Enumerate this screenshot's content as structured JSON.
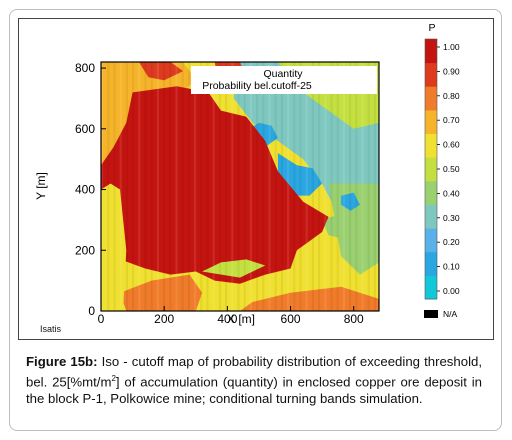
{
  "chart_data": {
    "type": "heatmap",
    "title": "Quantity",
    "subtitle": "Probability bel.cutoff-25",
    "xlabel": "X [m]",
    "ylabel": "Y [m]",
    "xlim": [
      0,
      880
    ],
    "ylim": [
      0,
      820
    ],
    "x_ticks": [
      "0",
      "200",
      "400",
      "600",
      "800"
    ],
    "y_ticks": [
      "0",
      "200",
      "400",
      "600",
      "800"
    ],
    "x_tick_values": [
      0,
      200,
      400,
      600,
      800
    ],
    "y_tick_values": [
      0,
      200,
      400,
      600,
      800
    ],
    "colorbar": {
      "title": "P",
      "range": [
        0,
        1
      ],
      "ticks": [
        "1.00",
        "0.90",
        "0.80",
        "0.70",
        "0.60",
        "0.50",
        "0.40",
        "0.30",
        "0.20",
        "0.10",
        "0.00"
      ],
      "tick_values": [
        1.0,
        0.9,
        0.8,
        0.7,
        0.6,
        0.5,
        0.4,
        0.3,
        0.2,
        0.1,
        0.0
      ],
      "colors": [
        "#10c8d8",
        "#2aa6e0",
        "#5ab0e8",
        "#7fc8c0",
        "#9ad070",
        "#c4e040",
        "#f0e030",
        "#f6b42a",
        "#f07b2a",
        "#dd3a1e",
        "#c41410"
      ],
      "na_label": "N/A",
      "na_color": "#000000"
    },
    "regions": [
      {
        "p": 0.55,
        "points": [
          [
            0,
            0
          ],
          [
            880,
            0
          ],
          [
            880,
            820
          ],
          [
            0,
            820
          ]
        ]
      },
      {
        "p": 0.72,
        "points": [
          [
            0,
            820
          ],
          [
            260,
            820
          ],
          [
            300,
            760
          ],
          [
            230,
            700
          ],
          [
            180,
            600
          ],
          [
            120,
            520
          ],
          [
            60,
            440
          ],
          [
            0,
            400
          ]
        ]
      },
      {
        "p": 0.82,
        "points": [
          [
            80,
            0
          ],
          [
            300,
            0
          ],
          [
            320,
            60
          ],
          [
            280,
            120
          ],
          [
            160,
            100
          ],
          [
            60,
            60
          ]
        ]
      },
      {
        "p": 0.75,
        "points": [
          [
            440,
            0
          ],
          [
            880,
            0
          ],
          [
            880,
            40
          ],
          [
            760,
            80
          ],
          [
            600,
            60
          ],
          [
            480,
            30
          ]
        ]
      },
      {
        "p": 0.28,
        "points": [
          [
            430,
            820
          ],
          [
            880,
            820
          ],
          [
            880,
            260
          ],
          [
            820,
            240
          ],
          [
            760,
            300
          ],
          [
            700,
            420
          ],
          [
            640,
            500
          ],
          [
            560,
            560
          ],
          [
            480,
            620
          ],
          [
            420,
            700
          ]
        ]
      },
      {
        "p": 0.45,
        "points": [
          [
            560,
            820
          ],
          [
            880,
            820
          ],
          [
            880,
            620
          ],
          [
            800,
            600
          ],
          [
            720,
            660
          ],
          [
            640,
            720
          ]
        ]
      },
      {
        "p": 0.36,
        "points": [
          [
            720,
            420
          ],
          [
            880,
            420
          ],
          [
            880,
            160
          ],
          [
            820,
            120
          ],
          [
            760,
            180
          ],
          [
            740,
            300
          ]
        ]
      },
      {
        "p": 0.1,
        "points": [
          [
            560,
            520
          ],
          [
            620,
            480
          ],
          [
            670,
            470
          ],
          [
            700,
            420
          ],
          [
            660,
            380
          ],
          [
            600,
            380
          ],
          [
            560,
            440
          ]
        ]
      },
      {
        "p": 0.08,
        "points": [
          [
            500,
            620
          ],
          [
            540,
            610
          ],
          [
            560,
            570
          ],
          [
            520,
            540
          ],
          [
            480,
            560
          ],
          [
            470,
            600
          ]
        ]
      },
      {
        "p": 0.42,
        "points": [
          [
            700,
            300
          ],
          [
            760,
            320
          ],
          [
            800,
            280
          ],
          [
            760,
            240
          ],
          [
            720,
            250
          ]
        ]
      },
      {
        "p": 0.12,
        "points": [
          [
            760,
            380
          ],
          [
            800,
            390
          ],
          [
            820,
            350
          ],
          [
            790,
            330
          ],
          [
            760,
            350
          ]
        ]
      },
      {
        "p": 0.95,
        "points": [
          [
            100,
            720
          ],
          [
            240,
            740
          ],
          [
            340,
            720
          ],
          [
            380,
            660
          ],
          [
            460,
            640
          ],
          [
            520,
            560
          ],
          [
            560,
            460
          ],
          [
            640,
            360
          ],
          [
            720,
            310
          ],
          [
            700,
            260
          ],
          [
            620,
            200
          ],
          [
            600,
            140
          ],
          [
            520,
            120
          ],
          [
            440,
            90
          ],
          [
            360,
            100
          ],
          [
            300,
            130
          ],
          [
            220,
            120
          ],
          [
            140,
            140
          ],
          [
            60,
            170
          ],
          [
            0,
            210
          ],
          [
            0,
            480
          ],
          [
            40,
            540
          ],
          [
            80,
            620
          ]
        ]
      },
      {
        "p": 0.98,
        "points": [
          [
            200,
            600
          ],
          [
            300,
            620
          ],
          [
            380,
            560
          ],
          [
            440,
            520
          ],
          [
            500,
            440
          ],
          [
            560,
            400
          ],
          [
            620,
            330
          ],
          [
            580,
            240
          ],
          [
            480,
            200
          ],
          [
            380,
            180
          ],
          [
            300,
            200
          ],
          [
            200,
            220
          ],
          [
            120,
            260
          ],
          [
            80,
            340
          ],
          [
            100,
            440
          ],
          [
            140,
            520
          ]
        ]
      },
      {
        "p": 0.92,
        "points": [
          [
            120,
            820
          ],
          [
            220,
            820
          ],
          [
            260,
            790
          ],
          [
            200,
            760
          ],
          [
            150,
            770
          ]
        ]
      },
      {
        "p": 0.9,
        "points": [
          [
            360,
            820
          ],
          [
            440,
            820
          ],
          [
            460,
            770
          ],
          [
            420,
            740
          ],
          [
            370,
            760
          ]
        ]
      },
      {
        "p": 0.62,
        "points": [
          [
            0,
            0
          ],
          [
            70,
            0
          ],
          [
            80,
            200
          ],
          [
            60,
            400
          ],
          [
            30,
            420
          ],
          [
            0,
            400
          ]
        ]
      },
      {
        "p": 0.5,
        "points": [
          [
            320,
            130
          ],
          [
            440,
            110
          ],
          [
            520,
            150
          ],
          [
            460,
            170
          ],
          [
            380,
            160
          ]
        ]
      }
    ]
  }
}
